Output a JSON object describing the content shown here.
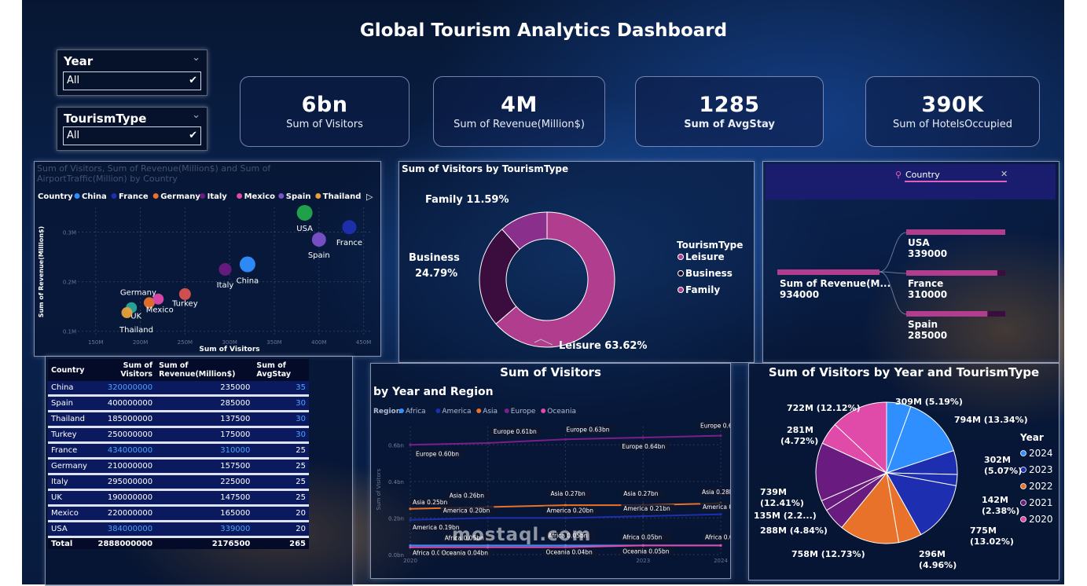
{
  "title": "Global Tourism Analytics Dashboard",
  "slicers": [
    {
      "label": "Year",
      "value": "All"
    },
    {
      "label": "TourismType",
      "value": "All"
    }
  ],
  "kpis": [
    {
      "value": "6bn",
      "caption": "Sum of Visitors"
    },
    {
      "value": "4M",
      "caption": "Sum of Revenue(Million$)"
    },
    {
      "value": "1285",
      "caption": "Sum of AvgStay"
    },
    {
      "value": "390K",
      "caption": "Sum of HotelsOccupied"
    }
  ],
  "scatter": {
    "title": "Sum of Visitors, Sum of Revenue(Million$) and Sum of AirportTraffic(Million) by Country",
    "legend_title": "Country",
    "xlabel": "Sum of Visitors",
    "ylabel": "Sum of Revenue(Million$)",
    "xticks": [
      "150M",
      "200M",
      "250M",
      "300M",
      "350M",
      "400M",
      "450M"
    ],
    "yticks": [
      "0.3M",
      "0.2M",
      "0.1M"
    ]
  },
  "donut": {
    "title": "Sum of Visitors by TourismType",
    "legend_title": "TourismType"
  },
  "decomp": {
    "header": "Country",
    "root_label": "Sum of Revenue(M...",
    "root_value": "934000",
    "items": [
      {
        "name": "USA",
        "value": "339000"
      },
      {
        "name": "France",
        "value": "310000"
      },
      {
        "name": "Spain",
        "value": "285000"
      }
    ]
  },
  "table": {
    "headers": [
      "Country",
      "Sum of Visitors",
      "Sum of Revenue(Million$)",
      "Sum of AvgStay"
    ],
    "rows": [
      [
        "China",
        "320000000",
        "235000",
        "35"
      ],
      [
        "Spain",
        "400000000",
        "285000",
        "30"
      ],
      [
        "Thailand",
        "185000000",
        "137500",
        "30"
      ],
      [
        "Turkey",
        "250000000",
        "175000",
        "30"
      ],
      [
        "France",
        "434000000",
        "310000",
        "25"
      ],
      [
        "Germany",
        "210000000",
        "157500",
        "25"
      ],
      [
        "Italy",
        "295000000",
        "225000",
        "25"
      ],
      [
        "UK",
        "190000000",
        "147500",
        "25"
      ],
      [
        "Mexico",
        "220000000",
        "165000",
        "20"
      ],
      [
        "USA",
        "384000000",
        "339000",
        "20"
      ]
    ],
    "total": [
      "Total",
      "2888000000",
      "2176500",
      "265"
    ]
  },
  "line": {
    "title": "Sum of Visitors",
    "subtitle": "by Year and Region",
    "legend_title": "Region",
    "ylabel": "Sum of Visitors",
    "yticks": [
      "0.6bn",
      "0.4bn",
      "0.2bn",
      "0.0bn"
    ]
  },
  "pie": {
    "title": "Sum of Visitors by Year and TourismType",
    "legend_title": "Year"
  },
  "watermark": "mostaql.com",
  "chart_data": [
    {
      "type": "scatter",
      "legend": [
        "China",
        "France",
        "Germany",
        "Italy",
        "Mexico",
        "Spain",
        "Thailand"
      ],
      "colors": {
        "China": "#2f8fff",
        "France": "#1d2fb0",
        "Germany": "#e8722a",
        "Italy": "#6a1b80",
        "Mexico": "#e04aa8",
        "Spain": "#7b52c9",
        "Thailand": "#e6a23c",
        "USA": "#22a84a",
        "Turkey": "#d9534f",
        "UK": "#28a99a"
      },
      "xlim": [
        130000000,
        460000000
      ],
      "ylim": [
        90000,
        350000
      ],
      "points": [
        {
          "label": "USA",
          "x": 384000000,
          "y": 339000
        },
        {
          "label": "France",
          "x": 434000000,
          "y": 310000
        },
        {
          "label": "Spain",
          "x": 400000000,
          "y": 285000
        },
        {
          "label": "China",
          "x": 320000000,
          "y": 235000
        },
        {
          "label": "Italy",
          "x": 295000000,
          "y": 225000
        },
        {
          "label": "Turkey",
          "x": 250000000,
          "y": 175000
        },
        {
          "label": "Germany",
          "x": 210000000,
          "y": 157500
        },
        {
          "label": "Mexico",
          "x": 220000000,
          "y": 165000
        },
        {
          "label": "UK",
          "x": 190000000,
          "y": 147500
        },
        {
          "label": "Thailand",
          "x": 185000000,
          "y": 137500
        }
      ]
    },
    {
      "type": "pie",
      "donut": true,
      "slices": [
        {
          "name": "Leisure",
          "value": 63.62,
          "label": "Leisure 63.62%",
          "color": "#b13d8e"
        },
        {
          "name": "Business",
          "value": 24.79,
          "label": "Business 24.79%",
          "color": "#3b0d3e"
        },
        {
          "name": "Family",
          "value": 11.59,
          "label": "Family 11.59%",
          "color": "#8a2f8c"
        }
      ]
    },
    {
      "type": "line",
      "x": [
        "2020",
        "2021",
        "2022",
        "2023",
        "2024"
      ],
      "ylim": [
        0,
        0.7
      ],
      "series": [
        {
          "name": "Africa",
          "color": "#2f8fff",
          "values": [
            0.05,
            0.05,
            0.05,
            0.05,
            0.05
          ]
        },
        {
          "name": "America",
          "color": "#1d2fb0",
          "values": [
            0.19,
            0.2,
            0.2,
            0.21,
            0.22
          ]
        },
        {
          "name": "Asia",
          "color": "#e8722a",
          "values": [
            0.25,
            0.26,
            0.27,
            0.27,
            0.28
          ]
        },
        {
          "name": "Europe",
          "color": "#7a1f8a",
          "values": [
            0.6,
            0.61,
            0.63,
            0.64,
            0.65
          ]
        },
        {
          "name": "Oceania",
          "color": "#e04aa8",
          "values": [
            0.04,
            0.04,
            0.04,
            0.05,
            0.05
          ]
        }
      ],
      "data_labels": [
        "Europe 0.60bn",
        "Europe 0.61bn",
        "Europe 0.63bn",
        "Europe 0.64bn",
        "Europe 0.65bn",
        "Asia 0.25bn",
        "Asia 0.26bn",
        "Asia 0.27bn",
        "Asia 0.27bn",
        "Asia 0.28bn",
        "America 0.19bn",
        "America 0.20bn",
        "America 0.20bn",
        "America 0.21bn",
        "America 0.22bn",
        "Africa 0.05bn",
        "Africa 0.05bn",
        "Africa 0.05bn",
        "Africa 0.05bn",
        "Africa 0.05bn",
        "Oceania 0.04bn",
        "Oceania 0.04bn",
        "Oceania 0.05bn"
      ]
    },
    {
      "type": "pie",
      "legend": [
        {
          "name": "2024",
          "color": "#2f8fff"
        },
        {
          "name": "2023",
          "color": "#1d2fb0"
        },
        {
          "name": "2022",
          "color": "#e8722a"
        },
        {
          "name": "2021",
          "color": "#6a1b80"
        },
        {
          "name": "2020",
          "color": "#e04aa8"
        }
      ],
      "slices": [
        {
          "label": "309M (5.19%)",
          "value": 309,
          "color": "#2f8fff"
        },
        {
          "label": "794M (13.34%)",
          "value": 794,
          "color": "#2f8fff"
        },
        {
          "label": "302M (5.07%)",
          "value": 302,
          "color": "#1d2fb0"
        },
        {
          "label": "142M (2.38%)",
          "value": 142,
          "color": "#1d2fb0"
        },
        {
          "label": "775M (13.02%)",
          "value": 775,
          "color": "#1d2fb0"
        },
        {
          "label": "296M (4.96%)",
          "value": 296,
          "color": "#e8722a"
        },
        {
          "label": "758M (12.73%)",
          "value": 758,
          "color": "#e8722a"
        },
        {
          "label": "288M (4.84%)",
          "value": 288,
          "color": "#6a1b80"
        },
        {
          "label": "135M (2.2...)",
          "value": 135,
          "color": "#6a1b80"
        },
        {
          "label": "739M (12.41%)",
          "value": 739,
          "color": "#6a1b80"
        },
        {
          "label": "281M (4.72%)",
          "value": 281,
          "color": "#e04aa8"
        },
        {
          "label": "722M (12.12%)",
          "value": 722,
          "color": "#e04aa8"
        }
      ]
    }
  ]
}
